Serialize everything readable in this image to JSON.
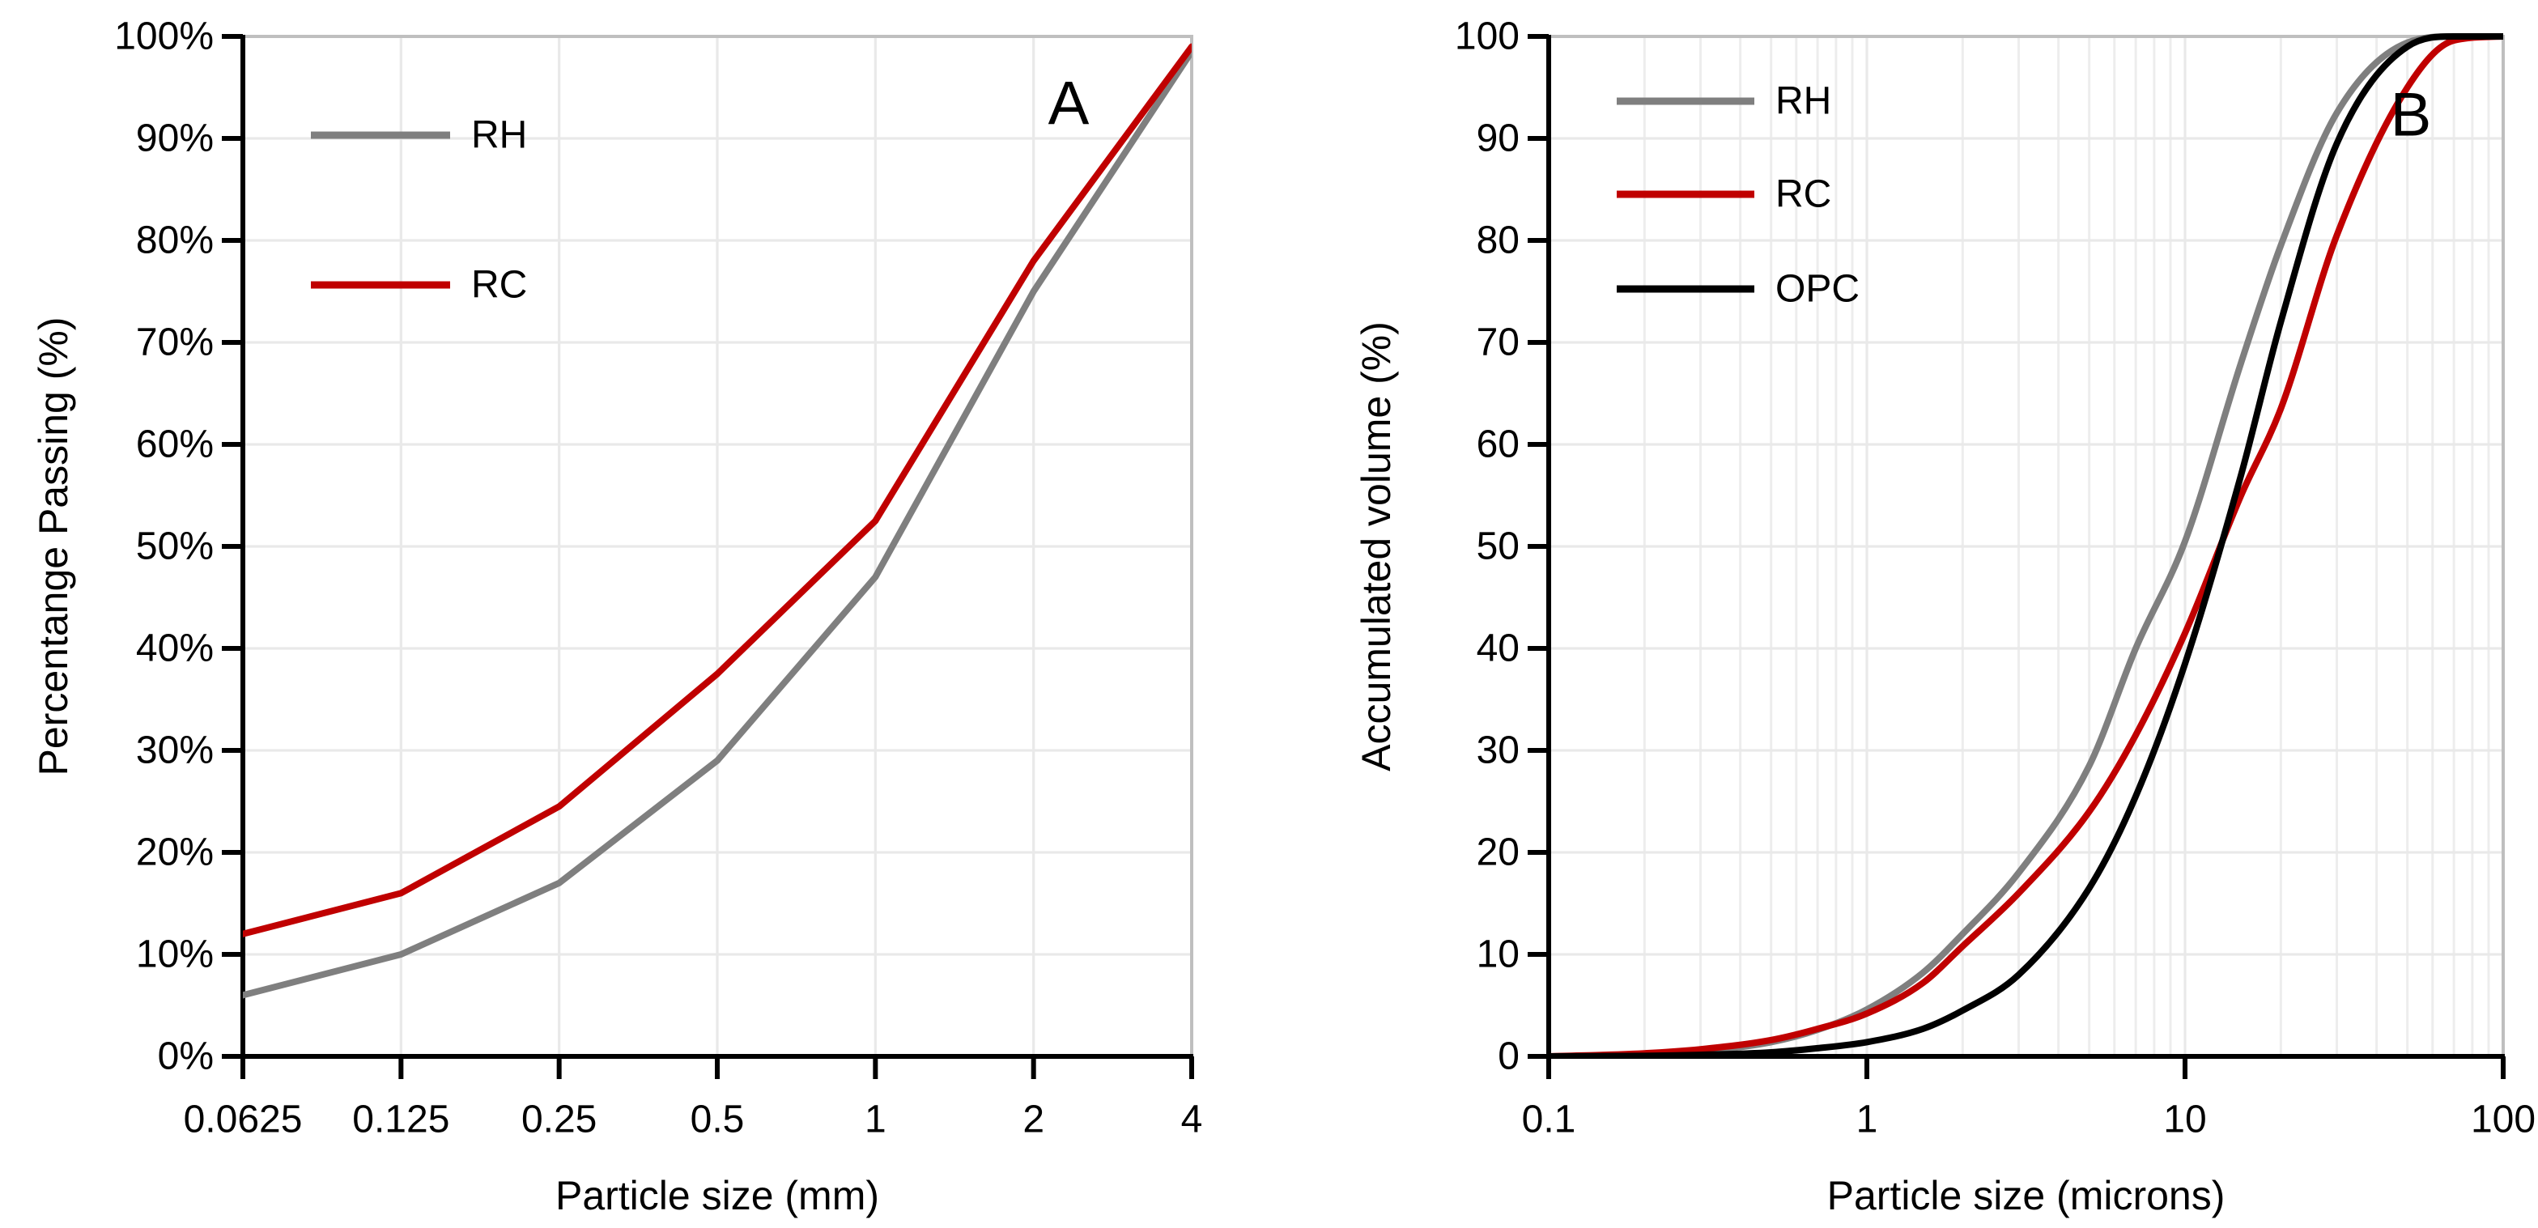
{
  "figure_title": "",
  "styles": {
    "background": "#FFFFFF",
    "axis_color": "#000000",
    "border_color": "#BFBFBF",
    "grid_major_color": "#E9E9E9",
    "grid_minor_color": "#EDEDED",
    "text_color": "#000000",
    "rh_color": "#7F7F7F",
    "rc_color": "#C00000",
    "opc_color": "#000000"
  },
  "chart_data": [
    {
      "id": "A",
      "type": "line",
      "corner_label": "A",
      "title": "",
      "xlabel": "Particle size (mm)",
      "ylabel": "Percentange Passing (%)",
      "x_axis": {
        "scale": "log",
        "min": 0.0625,
        "max": 4,
        "ticks": [
          {
            "v": 0.0625,
            "label": "0.0625"
          },
          {
            "v": 0.125,
            "label": "0.125"
          },
          {
            "v": 0.25,
            "label": "0.25"
          },
          {
            "v": 0.5,
            "label": "0.5"
          },
          {
            "v": 1,
            "label": "1"
          },
          {
            "v": 2,
            "label": "2"
          },
          {
            "v": 4,
            "label": "4"
          }
        ],
        "minor_gridlines": false
      },
      "y_axis": {
        "min": 0,
        "max": 100,
        "tick_step": 10,
        "ticks": [
          {
            "v": 0,
            "label": "0%"
          },
          {
            "v": 10,
            "label": "10%"
          },
          {
            "v": 20,
            "label": "20%"
          },
          {
            "v": 30,
            "label": "30%"
          },
          {
            "v": 40,
            "label": "40%"
          },
          {
            "v": 50,
            "label": "50%"
          },
          {
            "v": 60,
            "label": "60%"
          },
          {
            "v": 70,
            "label": "70%"
          },
          {
            "v": 80,
            "label": "80%"
          },
          {
            "v": 90,
            "label": "90%"
          },
          {
            "v": 100,
            "label": "100%"
          }
        ]
      },
      "legend": [
        "RH",
        "RC"
      ],
      "series": [
        {
          "name": "RH",
          "color": "#7F7F7F",
          "smooth": false,
          "points": [
            [
              0.0625,
              6
            ],
            [
              0.125,
              10
            ],
            [
              0.25,
              17
            ],
            [
              0.5,
              29
            ],
            [
              1,
              47
            ],
            [
              2,
              75
            ],
            [
              4,
              98.5
            ]
          ]
        },
        {
          "name": "RC",
          "color": "#C00000",
          "smooth": false,
          "points": [
            [
              0.0625,
              12
            ],
            [
              0.125,
              16
            ],
            [
              0.25,
              24.5
            ],
            [
              0.5,
              37.5
            ],
            [
              1,
              52.5
            ],
            [
              2,
              78
            ],
            [
              4,
              99
            ]
          ]
        }
      ]
    },
    {
      "id": "B",
      "type": "line",
      "corner_label": "B",
      "title": "",
      "xlabel": "Particle size (microns)",
      "ylabel": "Accumulated volume (%)",
      "x_axis": {
        "scale": "log",
        "min": 0.1,
        "max": 100,
        "ticks": [
          {
            "v": 0.1,
            "label": "0.1"
          },
          {
            "v": 1,
            "label": "1"
          },
          {
            "v": 10,
            "label": "10"
          },
          {
            "v": 100,
            "label": "100"
          }
        ],
        "minor_gridlines": true
      },
      "y_axis": {
        "min": 0,
        "max": 100,
        "tick_step": 10,
        "ticks": [
          {
            "v": 0,
            "label": "0"
          },
          {
            "v": 10,
            "label": "10"
          },
          {
            "v": 20,
            "label": "20"
          },
          {
            "v": 30,
            "label": "30"
          },
          {
            "v": 40,
            "label": "40"
          },
          {
            "v": 50,
            "label": "50"
          },
          {
            "v": 60,
            "label": "60"
          },
          {
            "v": 70,
            "label": "70"
          },
          {
            "v": 80,
            "label": "80"
          },
          {
            "v": 90,
            "label": "90"
          },
          {
            "v": 100,
            "label": "100"
          }
        ]
      },
      "legend": [
        "RH",
        "RC",
        "OPC"
      ],
      "series": [
        {
          "name": "RH",
          "color": "#7F7F7F",
          "smooth": true,
          "points": [
            [
              0.1,
              0
            ],
            [
              0.2,
              0.2
            ],
            [
              0.3,
              0.5
            ],
            [
              0.5,
              1.4
            ],
            [
              0.7,
              2.6
            ],
            [
              1,
              4.6
            ],
            [
              1.5,
              8.2
            ],
            [
              2,
              12
            ],
            [
              3,
              18
            ],
            [
              5,
              28.5
            ],
            [
              7,
              40
            ],
            [
              10,
              50.5
            ],
            [
              15,
              68
            ],
            [
              20,
              79.5
            ],
            [
              30,
              92.5
            ],
            [
              50,
              99.4
            ],
            [
              70,
              100
            ],
            [
              100,
              100
            ]
          ]
        },
        {
          "name": "RC",
          "color": "#C00000",
          "smooth": true,
          "points": [
            [
              0.1,
              0
            ],
            [
              0.2,
              0.3
            ],
            [
              0.3,
              0.7
            ],
            [
              0.5,
              1.6
            ],
            [
              0.7,
              2.7
            ],
            [
              1,
              4.2
            ],
            [
              1.5,
              7.2
            ],
            [
              2,
              10.8
            ],
            [
              3,
              16
            ],
            [
              5,
              24
            ],
            [
              7,
              31.5
            ],
            [
              10,
              41.5
            ],
            [
              15,
              55
            ],
            [
              20,
              63.5
            ],
            [
              30,
              80.5
            ],
            [
              50,
              95
            ],
            [
              70,
              99.6
            ],
            [
              100,
              100
            ]
          ]
        },
        {
          "name": "OPC",
          "color": "#000000",
          "smooth": true,
          "points": [
            [
              0.1,
              0
            ],
            [
              0.2,
              0.05
            ],
            [
              0.3,
              0.15
            ],
            [
              0.5,
              0.4
            ],
            [
              0.7,
              0.8
            ],
            [
              1,
              1.4
            ],
            [
              1.5,
              2.7
            ],
            [
              2,
              4.5
            ],
            [
              3,
              8
            ],
            [
              5,
              16.5
            ],
            [
              7,
              25.5
            ],
            [
              10,
              38.5
            ],
            [
              15,
              57
            ],
            [
              20,
              72
            ],
            [
              30,
              89.5
            ],
            [
              50,
              99
            ],
            [
              70,
              100
            ],
            [
              100,
              100
            ]
          ]
        }
      ]
    }
  ]
}
